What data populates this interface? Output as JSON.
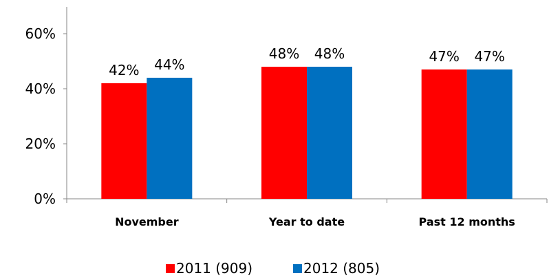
{
  "chart_data": {
    "type": "bar",
    "categories": [
      "November",
      "Year to date",
      "Past 12 months"
    ],
    "series": [
      {
        "name": "2011 (909)",
        "values": [
          42,
          48,
          47
        ],
        "labels": [
          "42%",
          "48%",
          "47%"
        ],
        "color": "#ff0000"
      },
      {
        "name": "2012 (805)",
        "values": [
          44,
          48,
          47
        ],
        "labels": [
          "44%",
          "48%",
          "47%"
        ],
        "color": "#0070c0"
      }
    ],
    "yticks": [
      0,
      20,
      40,
      60
    ],
    "ytick_labels": [
      "0%",
      "20%",
      "40%",
      "60%"
    ],
    "ylim": [
      0,
      60
    ],
    "grid": false,
    "legend_position": "bottom",
    "title": "",
    "xlabel": "",
    "ylabel": ""
  }
}
